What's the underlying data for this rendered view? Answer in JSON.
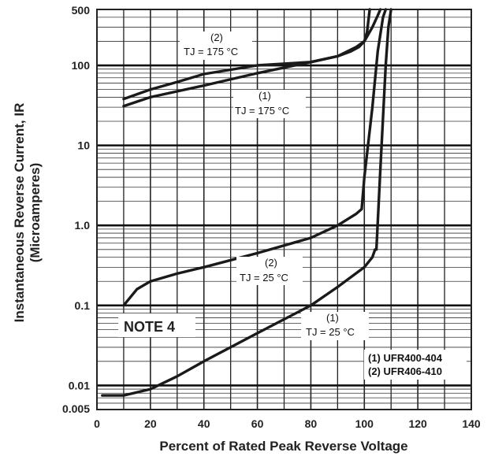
{
  "chart_data": {
    "type": "line",
    "xlabel": "Percent of Rated Peak Reverse Voltage",
    "ylabel_line1": "Instantaneous Reverse Current, IR",
    "ylabel_line2": "(Microamperes)",
    "x_scale": "linear",
    "y_scale": "log",
    "xlim": [
      0,
      140
    ],
    "ylim": [
      0.005,
      500
    ],
    "x_ticks": [
      "0",
      "20",
      "40",
      "60",
      "80",
      "100",
      "120",
      "140"
    ],
    "y_ticks": [
      "0.005",
      "0.01",
      "0.1",
      "1.0",
      "10",
      "100",
      "500"
    ],
    "grid": true,
    "series": [
      {
        "name": "(2) TJ = 175 °C",
        "label_num": "(2)",
        "label_temp": "TJ = 175 °C",
        "x": [
          10,
          20,
          30,
          40,
          60,
          80,
          90,
          97,
          100,
          103,
          105,
          106
        ],
        "y": [
          38,
          50,
          62,
          78,
          100,
          110,
          130,
          170,
          200,
          300,
          420,
          500
        ]
      },
      {
        "name": "(1) TJ = 175 °C",
        "label_num": "(1)",
        "label_temp": "TJ = 175 °C",
        "x": [
          10,
          20,
          40,
          60,
          80,
          90,
          95,
          98,
          100,
          101,
          102
        ],
        "y": [
          31,
          40,
          56,
          80,
          110,
          130,
          150,
          170,
          200,
          260,
          500
        ]
      },
      {
        "name": "(2) TJ = 25 °C",
        "label_num": "(2)",
        "label_temp": "TJ = 25 °C",
        "x": [
          10,
          15,
          20,
          30,
          40,
          60,
          80,
          90,
          97,
          99,
          100,
          103,
          105,
          107,
          108
        ],
        "y": [
          0.1,
          0.16,
          0.2,
          0.25,
          0.3,
          0.45,
          0.7,
          1.0,
          1.4,
          1.6,
          4,
          30,
          150,
          400,
          500
        ]
      },
      {
        "name": "(1) TJ = 25 °C",
        "label_num": "(1)",
        "label_temp": "TJ = 25 °C",
        "x": [
          2,
          10,
          20,
          30,
          40,
          60,
          80,
          90,
          100,
          103,
          104,
          104.5,
          106,
          108,
          109,
          110
        ],
        "y": [
          0.0075,
          0.0075,
          0.009,
          0.013,
          0.02,
          0.045,
          0.1,
          0.17,
          0.3,
          0.4,
          0.5,
          0.5,
          5,
          100,
          300,
          500
        ]
      }
    ],
    "note": "NOTE 4",
    "legend": [
      "(1) UFR400-404",
      "(2) UFR406-410"
    ],
    "legend_placement": "bottom-right"
  }
}
